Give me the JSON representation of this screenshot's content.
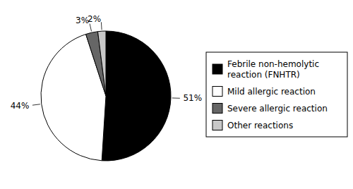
{
  "chart_data": {
    "type": "pie",
    "categories": [
      "Febrile non-hemolytic\nreaction (FNHTR)",
      "Mild allergic reaction",
      "Severe allergic reaction",
      "Other reactions"
    ],
    "values": [
      51,
      44,
      3,
      2
    ],
    "value_labels": [
      "51%",
      "44%",
      "3%",
      "2%"
    ],
    "data_labels": true,
    "colors": [
      "#000000",
      "#ffffff",
      "#666666",
      "#c8c8c8"
    ],
    "legend": "right"
  }
}
